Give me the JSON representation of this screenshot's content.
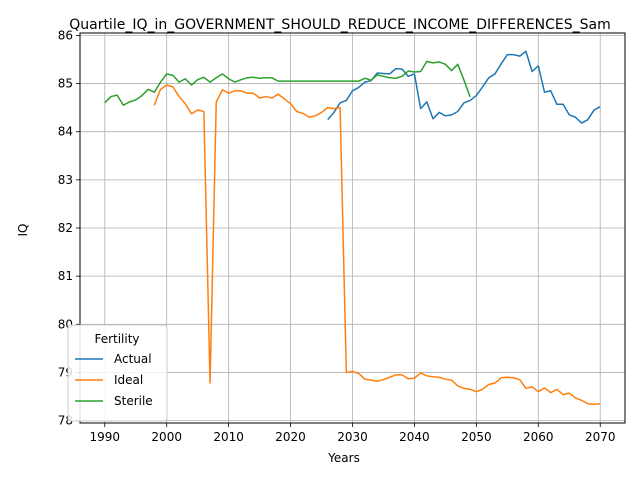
{
  "chart_data": {
    "type": "line",
    "title": "Quartile_IQ_in_GOVERNMENT_SHOULD_REDUCE_INCOME_DIFFERENCES_Sam",
    "xlabel": "Years",
    "ylabel": "IQ",
    "xlim": [
      1986,
      2074
    ],
    "ylim": [
      77.95,
      86.05
    ],
    "xticks": [
      1990,
      2000,
      2010,
      2020,
      2030,
      2040,
      2050,
      2060,
      2070
    ],
    "yticks": [
      78,
      79,
      80,
      81,
      82,
      83,
      84,
      85,
      86
    ],
    "grid": true,
    "legend": {
      "title": "Fertility",
      "placement": "lower-left"
    },
    "series": [
      {
        "name": "Actual",
        "color": "#1f77b4",
        "x": [
          2026,
          2027,
          2028,
          2029,
          2030,
          2031,
          2032,
          2033,
          2034,
          2035,
          2036,
          2037,
          2038,
          2039,
          2040,
          2041,
          2042,
          2043,
          2044,
          2045,
          2046,
          2047,
          2048,
          2049,
          2050,
          2051,
          2052,
          2053,
          2054,
          2055,
          2056,
          2057,
          2058,
          2059,
          2060,
          2061,
          2062,
          2063,
          2064,
          2065,
          2066,
          2067,
          2068,
          2069,
          2070
        ],
        "y": [
          84.25,
          84.4,
          84.6,
          84.65,
          84.85,
          84.92,
          85.03,
          85.06,
          85.22,
          85.21,
          85.2,
          85.31,
          85.3,
          85.15,
          85.2,
          84.48,
          84.62,
          84.27,
          84.4,
          84.33,
          84.35,
          84.42,
          84.6,
          84.65,
          84.75,
          84.93,
          85.12,
          85.2,
          85.41,
          85.6,
          85.6,
          85.57,
          85.67,
          85.25,
          85.37,
          84.82,
          84.85,
          84.57,
          84.57,
          84.35,
          84.3,
          84.18,
          84.25,
          84.45,
          84.52
        ]
      },
      {
        "name": "Ideal",
        "color": "#ff7f0e",
        "x": [
          1998,
          1999,
          2000,
          2001,
          2002,
          2003,
          2004,
          2005,
          2006,
          2007,
          2008,
          2009,
          2010,
          2011,
          2012,
          2013,
          2014,
          2015,
          2016,
          2017,
          2018,
          2019,
          2020,
          2021,
          2022,
          2023,
          2024,
          2025,
          2026,
          2027,
          2028,
          2029,
          2030,
          2031,
          2032,
          2033,
          2034,
          2035,
          2036,
          2037,
          2038,
          2039,
          2040,
          2041,
          2042,
          2043,
          2044,
          2045,
          2046,
          2047,
          2048,
          2049,
          2050,
          2051,
          2052,
          2053,
          2054,
          2055,
          2056,
          2057,
          2058,
          2059,
          2060,
          2061,
          2062,
          2063,
          2064,
          2065,
          2066,
          2067,
          2068,
          2069,
          2070
        ],
        "y": [
          84.55,
          84.88,
          84.97,
          84.93,
          84.73,
          84.58,
          84.37,
          84.45,
          84.42,
          78.78,
          84.62,
          84.87,
          84.8,
          84.85,
          84.85,
          84.8,
          84.8,
          84.7,
          84.73,
          84.7,
          84.78,
          84.68,
          84.58,
          84.42,
          84.38,
          84.3,
          84.33,
          84.4,
          84.5,
          84.48,
          84.5,
          79.0,
          79.02,
          78.98,
          78.86,
          78.84,
          78.82,
          78.85,
          78.9,
          78.95,
          78.95,
          78.87,
          78.88,
          78.99,
          78.93,
          78.91,
          78.9,
          78.86,
          78.84,
          78.72,
          78.67,
          78.65,
          78.6,
          78.65,
          78.75,
          78.78,
          78.89,
          78.9,
          78.89,
          78.85,
          78.67,
          78.7,
          78.6,
          78.68,
          78.58,
          78.65,
          78.54,
          78.57,
          78.47,
          78.42,
          78.35,
          78.34,
          78.35
        ]
      },
      {
        "name": "Sterile",
        "color": "#2ca02c",
        "x": [
          1990,
          1991,
          1992,
          1993,
          1994,
          1995,
          1996,
          1997,
          1998,
          1999,
          2000,
          2001,
          2002,
          2003,
          2004,
          2005,
          2006,
          2007,
          2008,
          2009,
          2010,
          2011,
          2012,
          2013,
          2014,
          2015,
          2016,
          2017,
          2018,
          2019,
          2020,
          2021,
          2022,
          2023,
          2024,
          2025,
          2026,
          2027,
          2028,
          2029,
          2030,
          2031,
          2032,
          2033,
          2034,
          2035,
          2036,
          2037,
          2038,
          2039,
          2040,
          2041,
          2042,
          2043,
          2044,
          2045,
          2046,
          2047,
          2048,
          2049
        ],
        "y": [
          84.6,
          84.73,
          84.76,
          84.55,
          84.62,
          84.66,
          84.75,
          84.88,
          84.82,
          85.03,
          85.2,
          85.17,
          85.03,
          85.1,
          84.97,
          85.08,
          85.13,
          85.03,
          85.12,
          85.2,
          85.1,
          85.03,
          85.08,
          85.12,
          85.13,
          85.11,
          85.12,
          85.12,
          85.05,
          85.05,
          85.05,
          85.05,
          85.05,
          85.05,
          85.05,
          85.05,
          85.05,
          85.05,
          85.05,
          85.05,
          85.05,
          85.05,
          85.11,
          85.07,
          85.18,
          85.15,
          85.12,
          85.11,
          85.15,
          85.26,
          85.24,
          85.25,
          85.46,
          85.43,
          85.45,
          85.4,
          85.27,
          85.4,
          85.07,
          84.72
        ]
      }
    ]
  }
}
